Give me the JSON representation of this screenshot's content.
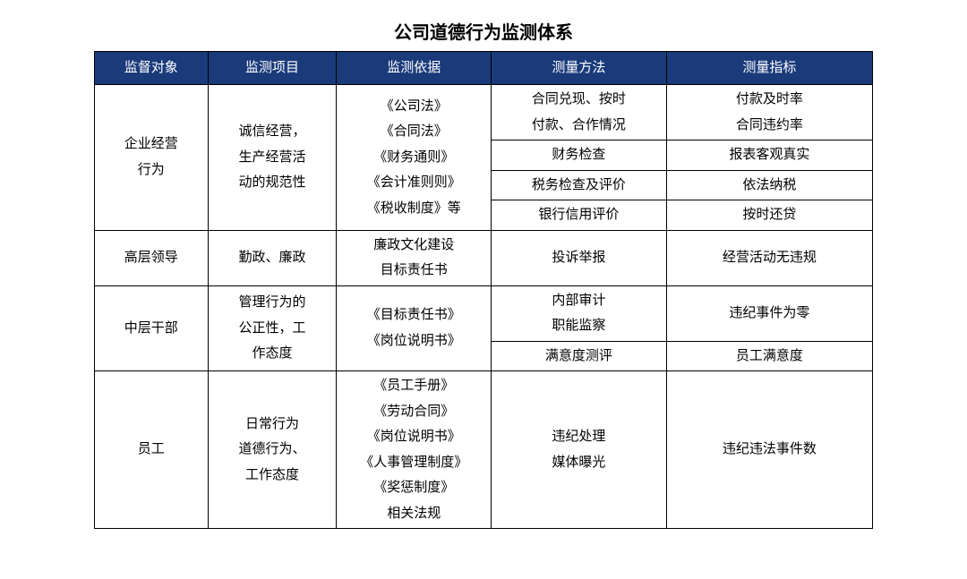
{
  "title": "公司道德行为监测体系",
  "header_bg": "#1a3a7a",
  "header_fg": "#ffffff",
  "columns": [
    "监督对象",
    "监测项目",
    "监测依据",
    "测量方法",
    "测量指标"
  ],
  "rows": {
    "r1": {
      "subject": "企业经营\n行为",
      "project": "诚信经营，\n生产经营活\n动的规范性",
      "basis": "《公司法》\n《合同法》\n《财务通则》\n《会计准则则》\n《税收制度》等",
      "method1": "合同兑现、按时\n付款、合作情况",
      "index1": "付款及时率\n合同违约率",
      "method2": "财务检查",
      "index2": "报表客观真实",
      "method3": "税务检查及评价",
      "index3": "依法纳税",
      "method4": "银行信用评价",
      "index4": "按时还贷"
    },
    "r2": {
      "subject": "高层领导",
      "project": "勤政、廉政",
      "basis": "廉政文化建设\n目标责任书",
      "method": "投诉举报",
      "index": "经营活动无违规"
    },
    "r3": {
      "subject": "中层干部",
      "project": "管理行为的\n公正性，工\n作态度",
      "basis": "《目标责任书》\n《岗位说明书》",
      "method1": "内部审计\n职能监察",
      "index1": "违纪事件为零",
      "method2": "满意度测评",
      "index2": "员工满意度"
    },
    "r4": {
      "subject": "员工",
      "project": "日常行为\n道德行为、\n工作态度",
      "basis": "《员工手册》\n《劳动合同》\n《岗位说明书》\n《人事管理制度》\n《奖惩制度》\n相关法规",
      "method": "违纪处理\n媒体曝光",
      "index": "违纪违法事件数"
    }
  }
}
